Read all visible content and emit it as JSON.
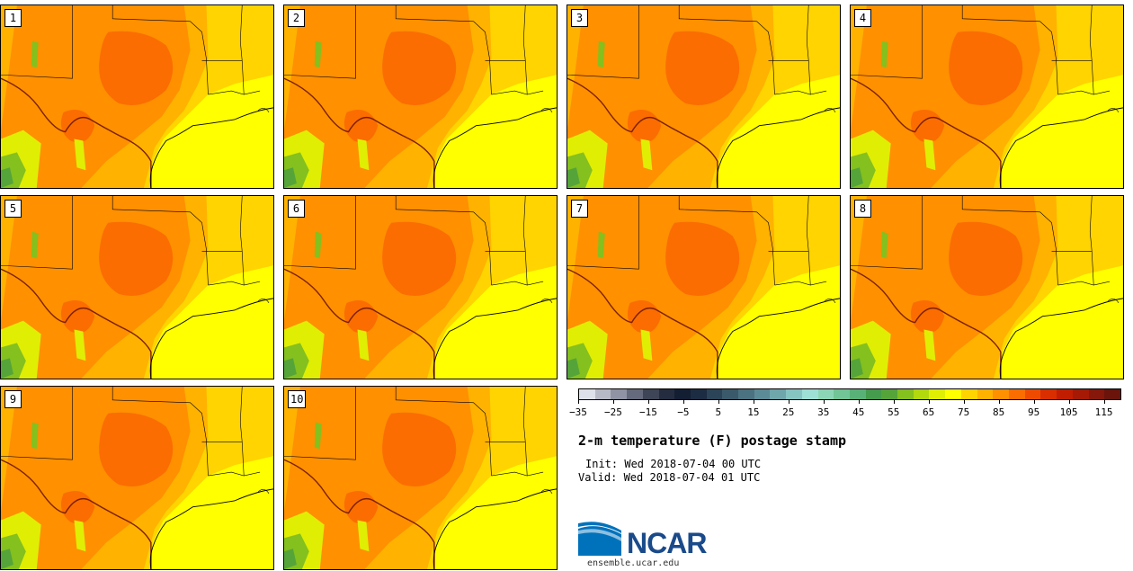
{
  "members": [
    {
      "label": "1"
    },
    {
      "label": "2"
    },
    {
      "label": "3"
    },
    {
      "label": "4"
    },
    {
      "label": "5"
    },
    {
      "label": "6"
    },
    {
      "label": "7"
    },
    {
      "label": "8"
    },
    {
      "label": "9"
    },
    {
      "label": "10"
    }
  ],
  "colorbar": {
    "colors": [
      "#dfe1ea",
      "#b7b9c6",
      "#8f93a3",
      "#656a7c",
      "#3e4556",
      "#232d3f",
      "#131e33",
      "#1c2c42",
      "#2b4457",
      "#3a5a6b",
      "#4a7280",
      "#5b8b96",
      "#6ea6ab",
      "#86c4c2",
      "#9ee0d6",
      "#8dd6b5",
      "#72c596",
      "#58b277",
      "#449c4c",
      "#55a43a",
      "#84c01e",
      "#b2d80e",
      "#e0ee04",
      "#ffff00",
      "#ffd400",
      "#ffb200",
      "#ff9000",
      "#fb6d00",
      "#ef4b00",
      "#d82e00",
      "#c11d00",
      "#a51905",
      "#86170b",
      "#6a140c"
    ],
    "min": -35,
    "max": 120,
    "tick_values": [
      -35,
      -25,
      -15,
      -5,
      5,
      15,
      25,
      35,
      45,
      55,
      65,
      75,
      85,
      95,
      105,
      115
    ],
    "tick_labels": [
      "−35",
      "−25",
      "−15",
      "−5",
      "5",
      "15",
      "25",
      "35",
      "45",
      "55",
      "65",
      "75",
      "85",
      "95",
      "105",
      "115"
    ]
  },
  "title": "2-m temperature (F) postage stamp",
  "init": "Init: Wed 2018-07-04 00 UTC",
  "valid": "Valid: Wed 2018-07-04 01 UTC",
  "logo": {
    "text": "NCAR",
    "url": "ensemble.ucar.edu"
  },
  "map_colors": {
    "ocean": "#ffff00",
    "coastal": "#ffd400",
    "warm": "#ffb200",
    "hot": "#ff9000",
    "hottest": "#fb6d00",
    "cool": "#e0ee04",
    "green": "#84c01e",
    "dark_green": "#55a43a",
    "border": "#000000",
    "river": "#7a2000"
  }
}
